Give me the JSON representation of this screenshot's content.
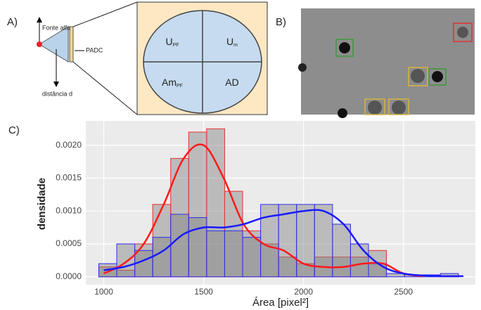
{
  "panels": {
    "a": {
      "label": "A)",
      "source": "Fonte alfa",
      "detector": "PADC",
      "distance": "distância d",
      "quadrants": [
        {
          "text": "U",
          "sub": "PF"
        },
        {
          "text": "U",
          "sub": "m"
        },
        {
          "text": "Am",
          "sub": "PF"
        },
        {
          "text": "AD",
          "sub": ""
        }
      ]
    },
    "b": {
      "label": "B)"
    },
    "c": {
      "label": "C)"
    }
  },
  "chart_data": {
    "type": "histogram",
    "xlabel": "Área [pixel²]",
    "ylabel": "densidade",
    "bins": [
      975,
      1065,
      1155,
      1245,
      1335,
      1425,
      1515,
      1605,
      1695,
      1785,
      1875,
      1965,
      2055,
      2145,
      2235,
      2325,
      2415,
      2505,
      2595,
      2685,
      2775
    ],
    "series": [
      {
        "color": "#e8302c",
        "values": [
          0.00015,
          0.0001,
          0.0005,
          0.0011,
          0.0018,
          0.0022,
          0.00225,
          0.0013,
          0.0007,
          0.0005,
          0.0003,
          0.0002,
          0.0003,
          0.0003,
          0.0003,
          0.0004,
          0,
          0,
          0,
          0
        ]
      },
      {
        "color": "#2a2ee8",
        "values": [
          0.0002,
          0.0005,
          0.0004,
          0.0006,
          0.00095,
          0.0009,
          0.0007,
          0.0007,
          0.0006,
          0.0011,
          0.0011,
          0.0011,
          0.0011,
          0.0008,
          0.0005,
          0.0002,
          5e-05,
          3e-05,
          3e-05,
          5e-05
        ]
      }
    ],
    "density_curves": [
      {
        "color": "#ff1a1a",
        "x": [
          1000,
          1100,
          1200,
          1300,
          1400,
          1500,
          1600,
          1700,
          1800,
          1900,
          2000,
          2100,
          2200,
          2300,
          2400,
          2500,
          2600
        ],
        "values": [
          5e-05,
          0.0002,
          0.0005,
          0.0011,
          0.0018,
          0.002,
          0.0015,
          0.0008,
          0.0005,
          0.0004,
          0.0002,
          0.00015,
          0.00015,
          0.0002,
          0.0002,
          5e-05,
          1e-05
        ]
      },
      {
        "color": "#1a1aff",
        "x": [
          1000,
          1100,
          1200,
          1300,
          1400,
          1500,
          1600,
          1700,
          1800,
          1900,
          2000,
          2100,
          2200,
          2300,
          2400,
          2500,
          2600,
          2700,
          2800
        ],
        "values": [
          0.0001,
          0.00015,
          0.00025,
          0.0004,
          0.00065,
          0.00075,
          0.00075,
          0.0008,
          0.0009,
          0.00095,
          0.001,
          0.001,
          0.0008,
          0.0004,
          0.00015,
          5e-05,
          2e-05,
          1e-05,
          1e-05
        ]
      }
    ],
    "xlim": [
      910,
      2860
    ],
    "ylim": [
      -0.00012,
      0.00237
    ],
    "xticks": [
      1000,
      1500,
      2000,
      2500
    ],
    "yticks": [
      {
        "value": 0,
        "label": "0.0000"
      },
      0.0005,
      {
        "value": 0.001,
        "label": "0.0010"
      },
      0.0015,
      {
        "value": 0.002,
        "label": "0.0020"
      }
    ],
    "grid": true
  }
}
